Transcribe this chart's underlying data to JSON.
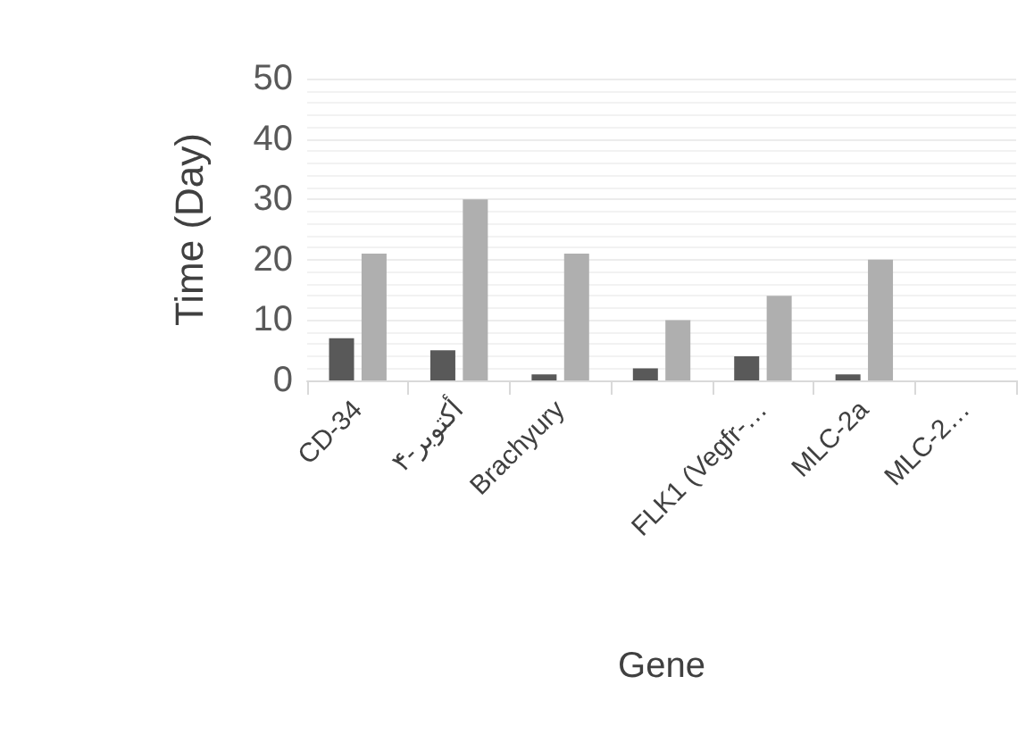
{
  "chart_data": {
    "type": "bar",
    "xlabel": "Gene",
    "ylabel": "Time (Day)",
    "categories": [
      "CD-34",
      "۴-أكتوبر",
      "Brachyury",
      null,
      "FLK1 (Vegfr-…",
      "MLC-2a",
      "MLC-2…"
    ],
    "series": [
      {
        "color": "#595959",
        "values": [
          7,
          5,
          1,
          2,
          4,
          1,
          null
        ]
      },
      {
        "color": "#afafaf",
        "values": [
          21,
          30,
          21,
          10,
          14,
          20,
          null
        ]
      }
    ],
    "ylim": [
      0,
      50
    ],
    "yticks": [
      0,
      10,
      20,
      30,
      40,
      50
    ],
    "grid": true
  }
}
